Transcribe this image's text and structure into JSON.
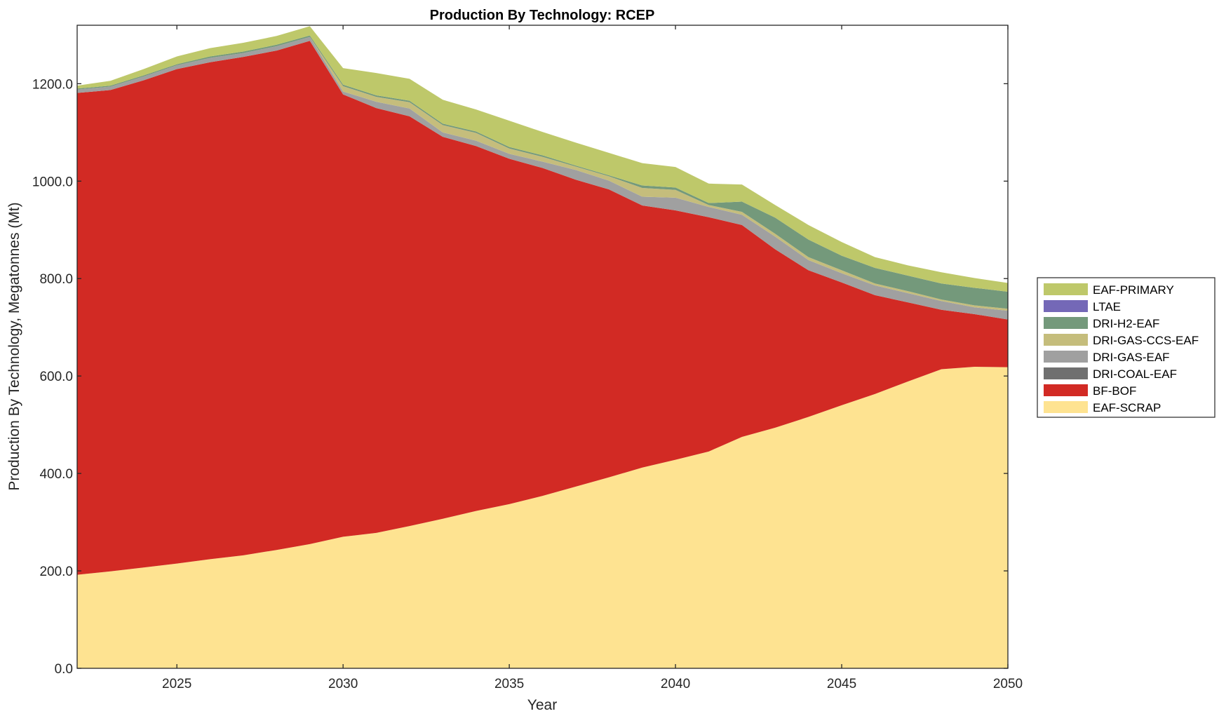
{
  "chart_data": {
    "type": "area",
    "stacked": true,
    "title": "Production By Technology: RCEP",
    "xlabel": "Year",
    "ylabel": "Production By Technology, Megatonnes (Mt)",
    "xlim": [
      2022,
      2050
    ],
    "ylim": [
      0,
      1320
    ],
    "x_ticks": [
      2025,
      2030,
      2035,
      2040,
      2045,
      2050
    ],
    "y_ticks": [
      0,
      200,
      400,
      600,
      800,
      1000,
      1200
    ],
    "y_tick_labels": [
      "0.0",
      "200.0",
      "400.0",
      "600.0",
      "800.0",
      "1000.0",
      "1200.0"
    ],
    "grid": false,
    "legend_position": "right",
    "x": [
      2022,
      2023,
      2024,
      2025,
      2026,
      2027,
      2028,
      2029,
      2030,
      2031,
      2032,
      2033,
      2034,
      2035,
      2036,
      2037,
      2038,
      2039,
      2040,
      2041,
      2042,
      2043,
      2044,
      2045,
      2046,
      2047,
      2048,
      2049,
      2050
    ],
    "series": [
      {
        "name": "EAF-SCRAP",
        "color": "#fee391",
        "values": [
          192,
          199,
          207,
          215,
          224,
          232,
          243,
          255,
          270,
          278,
          292,
          307,
          323,
          337,
          354,
          373,
          392,
          412,
          428,
          445,
          475,
          494,
          516,
          540,
          563,
          589,
          614,
          619,
          618
        ]
      },
      {
        "name": "BF-BOF",
        "color": "#d22a24",
        "values": [
          989,
          988,
          1000,
          1015,
          1020,
          1023,
          1025,
          1033,
          908,
          872,
          841,
          784,
          749,
          709,
          673,
          630,
          591,
          538,
          512,
          481,
          435,
          366,
          301,
          252,
          203,
          162,
          122,
          108,
          98
        ]
      },
      {
        "name": "DRI-COAL-EAF",
        "color": "#707070",
        "values": [
          0,
          0,
          0,
          0,
          0,
          0,
          0,
          0,
          0,
          0,
          0,
          0,
          0,
          0,
          0,
          0,
          0,
          0,
          0,
          0,
          0,
          0,
          0,
          0,
          0,
          0,
          0,
          0,
          0
        ]
      },
      {
        "name": "DRI-GAS-EAF",
        "color": "#a0a0a0",
        "values": [
          7,
          7,
          8,
          8,
          9,
          8,
          9,
          8,
          6,
          13,
          16,
          9,
          11,
          10,
          13,
          20,
          18,
          18,
          26,
          21,
          21,
          26,
          21,
          19,
          20,
          19,
          18,
          14,
          18
        ]
      },
      {
        "name": "DRI-GAS-CCS-EAF",
        "color": "#c5bd7c",
        "values": [
          0,
          0,
          0,
          0,
          0,
          0,
          0,
          0,
          11,
          10,
          13,
          15,
          16,
          11,
          10,
          7,
          9,
          18,
          16,
          4,
          6,
          6,
          6,
          6,
          4,
          4,
          3,
          4,
          4
        ]
      },
      {
        "name": "DRI-H2-EAF",
        "color": "#74997b",
        "values": [
          2,
          2,
          2,
          2,
          3,
          3,
          3,
          3,
          3,
          3,
          3,
          3,
          3,
          3,
          3,
          2,
          2,
          5,
          5,
          4,
          21,
          33,
          36,
          30,
          32,
          32,
          33,
          36,
          35
        ]
      },
      {
        "name": "LTAE",
        "color": "#7468b7",
        "values": [
          0,
          0,
          0,
          0,
          0,
          0,
          0,
          0,
          0,
          0,
          0,
          0,
          0,
          0,
          0,
          0,
          0,
          0,
          0,
          0,
          0,
          0,
          0,
          0,
          0,
          0,
          0,
          0,
          0
        ]
      },
      {
        "name": "EAF-PRIMARY",
        "color": "#bec86a",
        "values": [
          6,
          10,
          13,
          16,
          17,
          18,
          18,
          19,
          34,
          46,
          45,
          49,
          45,
          54,
          48,
          47,
          46,
          46,
          42,
          40,
          35,
          26,
          30,
          28,
          22,
          21,
          23,
          20,
          18
        ]
      }
    ],
    "legend_order": [
      "EAF-PRIMARY",
      "LTAE",
      "DRI-H2-EAF",
      "DRI-GAS-CCS-EAF",
      "DRI-GAS-EAF",
      "DRI-COAL-EAF",
      "BF-BOF",
      "EAF-SCRAP"
    ]
  }
}
